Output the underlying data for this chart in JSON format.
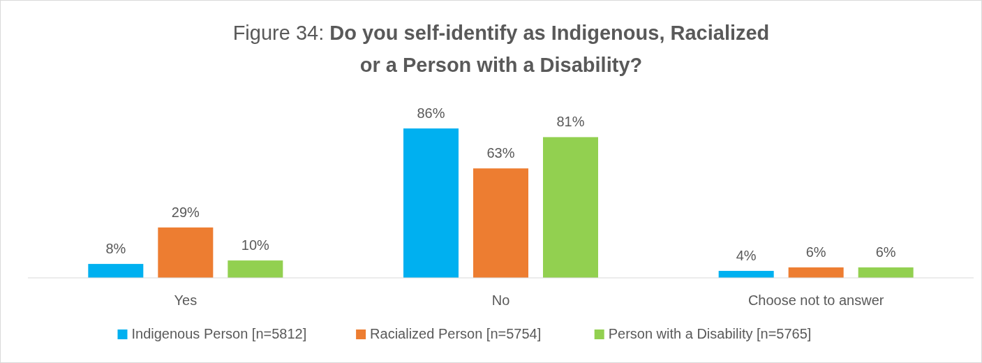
{
  "chart_data": {
    "type": "bar",
    "title": "Figure 34: Do you self-identify as Indigenous, Racialized or a Person with a Disability?",
    "categories": [
      "Yes",
      "No",
      "Choose not to answer"
    ],
    "series": [
      {
        "name": "Indigenous Person [n=5812]",
        "color": "#00b0f0",
        "values": [
          8,
          86,
          4
        ],
        "value_labels": [
          "8%",
          "86%",
          "4%"
        ]
      },
      {
        "name": "Racialized Person [n=5754]",
        "color": "#ed7d31",
        "values": [
          29,
          63,
          6
        ],
        "value_labels": [
          "29%",
          "63%",
          "6%"
        ]
      },
      {
        "name": "Person with a Disability [n=5765]",
        "color": "#92d050",
        "values": [
          10,
          81,
          6
        ],
        "value_labels": [
          "10%",
          "81%",
          "6%"
        ]
      }
    ],
    "legend": "bottom"
  }
}
